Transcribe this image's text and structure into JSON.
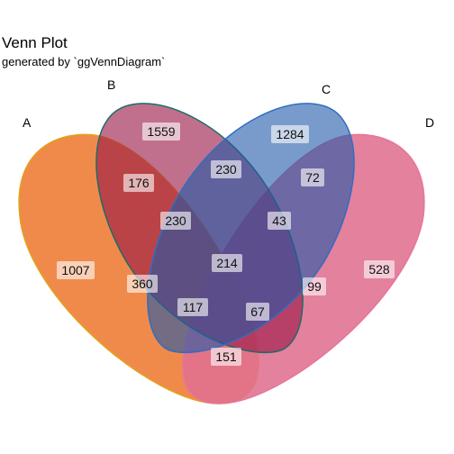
{
  "title": "Venn Plot",
  "subtitle": "generated by `ggVennDiagram`",
  "sets": [
    {
      "id": "A",
      "label": "A",
      "color": "#f08a4b"
    },
    {
      "id": "B",
      "label": "B",
      "color": "#c0183f"
    },
    {
      "id": "C",
      "label": "C",
      "color": "#d84f47"
    },
    {
      "id": "D",
      "label": "D",
      "color": "#e07090"
    }
  ],
  "regions": [
    {
      "sets": "A",
      "count": "1007"
    },
    {
      "sets": "B",
      "count": "1559"
    },
    {
      "sets": "C",
      "count": "1284"
    },
    {
      "sets": "D",
      "count": "528"
    },
    {
      "sets": "AB",
      "count": "176"
    },
    {
      "sets": "BC",
      "count": "230"
    },
    {
      "sets": "CD",
      "count": "72"
    },
    {
      "sets": "ABC",
      "count": "230"
    },
    {
      "sets": "BCD",
      "count": "43"
    },
    {
      "sets": "AC",
      "count": "360"
    },
    {
      "sets": "ABCD",
      "count": "214"
    },
    {
      "sets": "BD",
      "count": "99"
    },
    {
      "sets": "ACD",
      "count": "117"
    },
    {
      "sets": "ABD",
      "count": "67"
    },
    {
      "sets": "AD",
      "count": "151"
    }
  ]
}
